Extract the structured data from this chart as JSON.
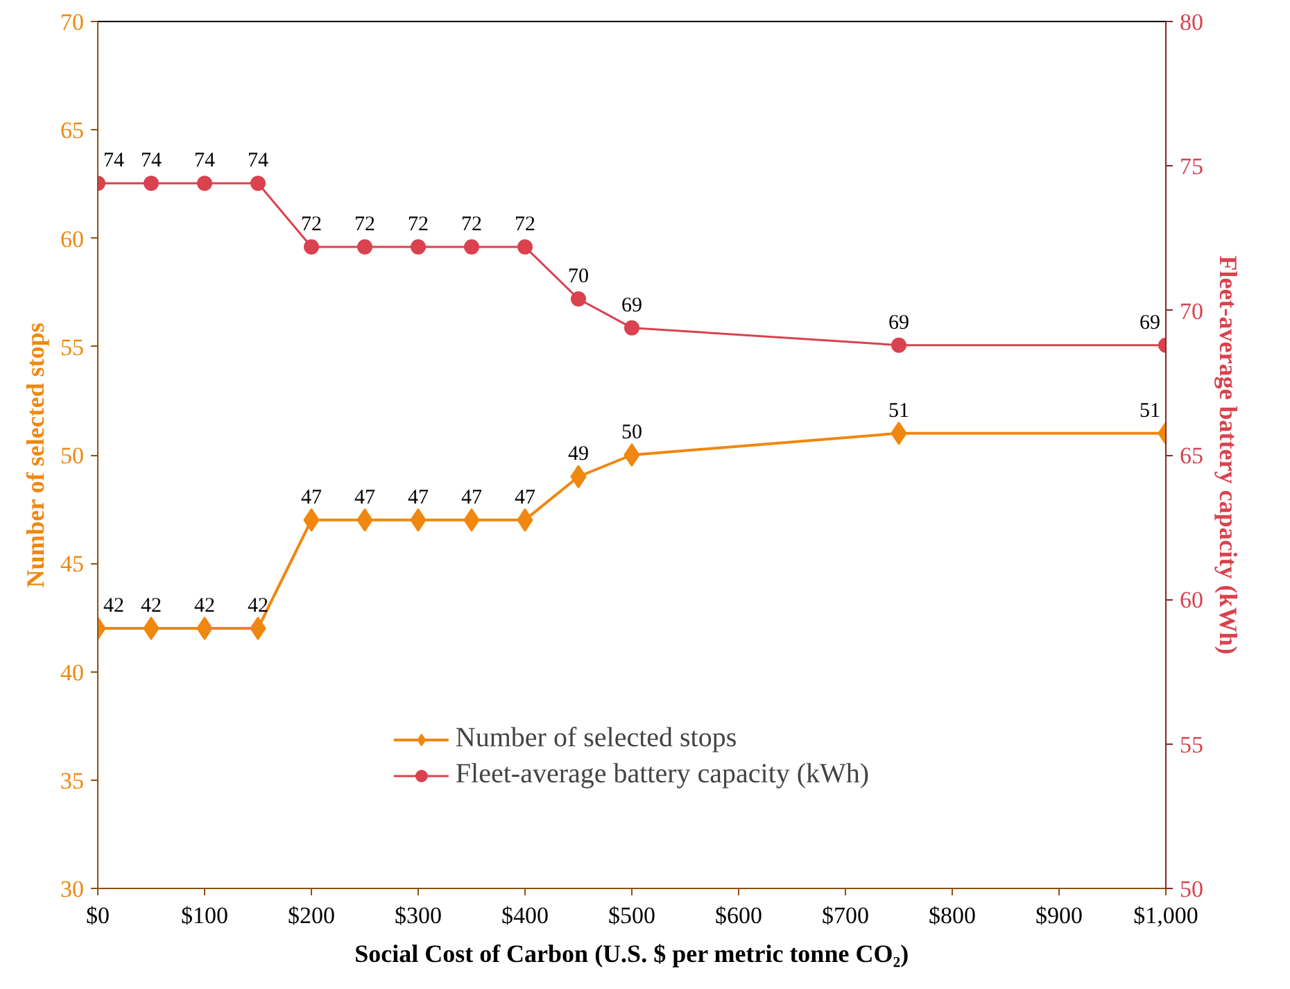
{
  "chart_data": {
    "type": "line",
    "xlabel": "Social Cost of Carbon (U.S. $ per metric tonne CO₂)",
    "ylabel": "Number of selected stops",
    "y2label": "Fleet-average battery capacity (kWh)",
    "x": [
      0,
      50,
      100,
      150,
      200,
      250,
      300,
      350,
      400,
      450,
      500,
      750,
      1000
    ],
    "xlim": [
      0,
      1000
    ],
    "xticks": [
      {
        "value": 0,
        "label": "$0"
      },
      {
        "value": 100,
        "label": "$100"
      },
      {
        "value": 200,
        "label": "$200"
      },
      {
        "value": 300,
        "label": "$300"
      },
      {
        "value": 400,
        "label": "$400"
      },
      {
        "value": 500,
        "label": "$500"
      },
      {
        "value": 600,
        "label": "$600"
      },
      {
        "value": 700,
        "label": "$700"
      },
      {
        "value": 800,
        "label": "$800"
      },
      {
        "value": 900,
        "label": "$900"
      },
      {
        "value": 1000,
        "label": "$1,000"
      }
    ],
    "ylim": [
      30,
      70
    ],
    "yticks": [
      30,
      35,
      40,
      45,
      50,
      55,
      60,
      65,
      70
    ],
    "y2lim": [
      50,
      80
    ],
    "y2ticks": [
      50,
      55,
      60,
      65,
      70,
      75,
      80
    ],
    "series": [
      {
        "name": "Number of selected stops",
        "color": "#f0870f",
        "marker": "diamond",
        "values": [
          42,
          42,
          42,
          42,
          47,
          47,
          47,
          47,
          47,
          49,
          50,
          51,
          51
        ],
        "value_labels": [
          "42",
          "42",
          "42",
          "42",
          "47",
          "47",
          "47",
          "47",
          "47",
          "49",
          "50",
          "51",
          "51"
        ]
      },
      {
        "name": "Fleet-average battery capacity (kWh)",
        "color": "#d9424e",
        "marker": "circle",
        "axis": "y2",
        "values": [
          74.4,
          74.4,
          74.4,
          74.4,
          72.2,
          72.2,
          72.2,
          72.2,
          72.2,
          70.4,
          69.4,
          68.8,
          68.8
        ],
        "value_labels": [
          "74",
          "74",
          "74",
          "74",
          "72",
          "72",
          "72",
          "72",
          "72",
          "70",
          "69",
          "69",
          "69"
        ]
      }
    ],
    "grid": false,
    "legend": "bottom"
  }
}
